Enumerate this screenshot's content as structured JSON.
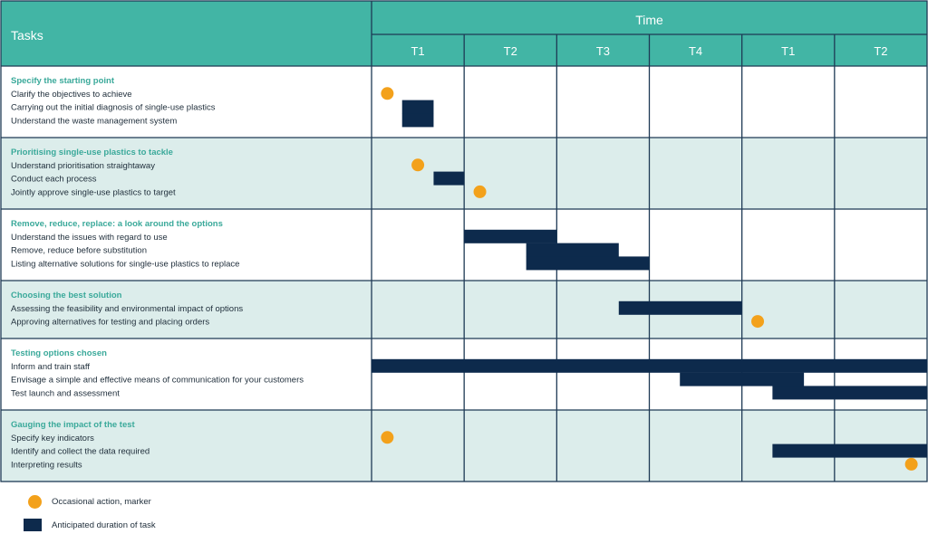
{
  "colors": {
    "header": "#42b5a5",
    "band": "#dcedeb",
    "grid": "#1e3a55",
    "title": "#3aa99a",
    "text": "#1e2d3a",
    "marker": "#f3a11b",
    "bar": "#0d2a4c"
  },
  "header": {
    "tasks_label": "Tasks",
    "time_label": "Time",
    "periods": [
      "T1",
      "T2",
      "T3",
      "T4",
      "T1",
      "T2"
    ]
  },
  "groups": [
    {
      "title": "Specify the starting point",
      "tasks": [
        {
          "label": "Clarify the objectives to achieve",
          "marker": 0.17
        },
        {
          "label": "Carrying out the initial diagnosis of single-use plastics",
          "bar": [
            0.33,
            0.67
          ]
        },
        {
          "label": "Understand the waste management system",
          "bar": [
            0.33,
            0.67
          ]
        }
      ]
    },
    {
      "title": "Prioritising single-use plastics to tackle",
      "tasks": [
        {
          "label": "Understand prioritisation straightaway",
          "marker": 0.5
        },
        {
          "label": "Conduct each process",
          "bar": [
            0.67,
            1.0
          ]
        },
        {
          "label": "Jointly approve single-use plastics to target",
          "marker": 1.17
        }
      ]
    },
    {
      "title": "Remove, reduce, replace: a look around the options",
      "tasks": [
        {
          "label": "Understand the issues with regard to use",
          "bar": [
            1.0,
            2.0
          ]
        },
        {
          "label": "Remove, reduce before substitution",
          "bar": [
            1.67,
            2.67
          ]
        },
        {
          "label": "Listing alternative solutions for single-use plastics to replace",
          "bar": [
            1.67,
            3.0
          ]
        }
      ]
    },
    {
      "title": "Choosing the best solution",
      "tasks": [
        {
          "label": "Assessing the feasibility and environmental impact of options",
          "bar": [
            2.67,
            4.0
          ]
        },
        {
          "label": "Approving alternatives for testing and placing orders",
          "marker": 4.17
        }
      ]
    },
    {
      "title": "Testing options chosen",
      "tasks": [
        {
          "label": "Inform and train staff",
          "bar": [
            0.0,
            6.0
          ]
        },
        {
          "label": "Envisage a simple and effective means of communication for your customers",
          "bar": [
            3.33,
            4.67
          ]
        },
        {
          "label": "Test launch and assessment",
          "bar": [
            4.33,
            6.0
          ]
        }
      ]
    },
    {
      "title": "Gauging the impact of the test",
      "tasks": [
        {
          "label": "Specify key indicators",
          "marker": 0.17
        },
        {
          "label": "Identify and collect the data required",
          "bar": [
            4.33,
            6.0
          ]
        },
        {
          "label": "Interpreting results",
          "marker": 5.83
        }
      ]
    }
  ],
  "legend": {
    "marker_label": "Occasional action, marker",
    "bar_label": "Anticipated duration of task"
  }
}
